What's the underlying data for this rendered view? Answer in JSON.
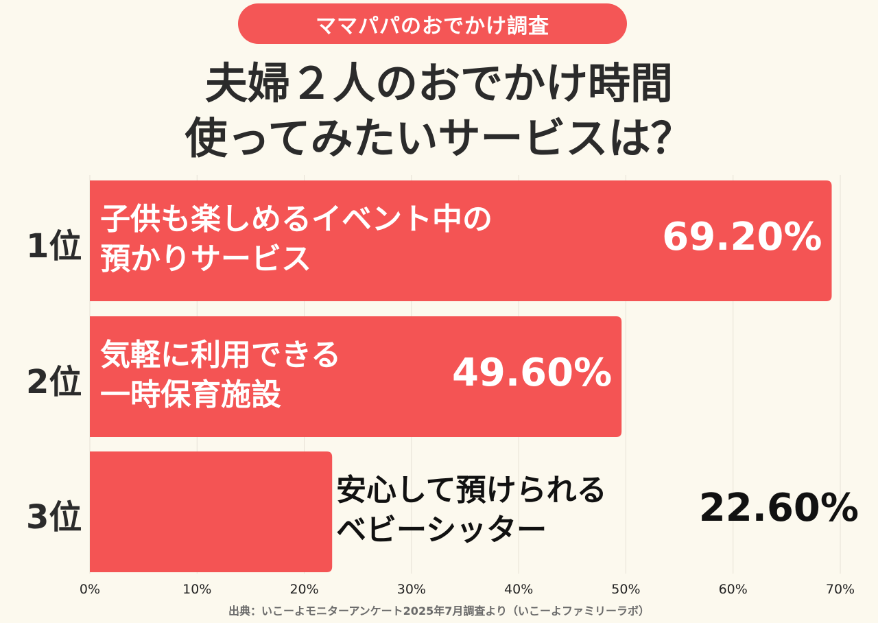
{
  "badge": "ママパパのおでかけ調査",
  "title_lines": [
    "夫婦２人のおでかけ時間",
    "使ってみたいサービスは？"
  ],
  "source": "出典：いこーよモニターアンケート2025年7月調査より（いこーよファミリーラボ）",
  "colors": {
    "bar": "#f45454",
    "background": "#fcf9ee",
    "grid": "#e6e1d6"
  },
  "chart_data": {
    "type": "bar",
    "orientation": "horizontal",
    "categories": [
      "子供も楽しめるイベント中の預かりサービス",
      "気軽に利用できる一時保育施設",
      "安心して預けられるベビーシッター"
    ],
    "category_lines": [
      [
        "子供も楽しめるイベント中の",
        "預かりサービス"
      ],
      [
        "気軽に利用できる",
        "一時保育施設"
      ],
      [
        "安心して預けられる",
        "ベビーシッター"
      ]
    ],
    "ranks": [
      "1位",
      "2位",
      "3位"
    ],
    "values": [
      69.2,
      49.6,
      22.6
    ],
    "data_labels": [
      "69.20%",
      "49.60%",
      "22.60%"
    ],
    "xlim": [
      0,
      70
    ],
    "xticks": [
      "0%",
      "10%",
      "20%",
      "30%",
      "40%",
      "50%",
      "60%",
      "70%"
    ],
    "grid": true
  }
}
